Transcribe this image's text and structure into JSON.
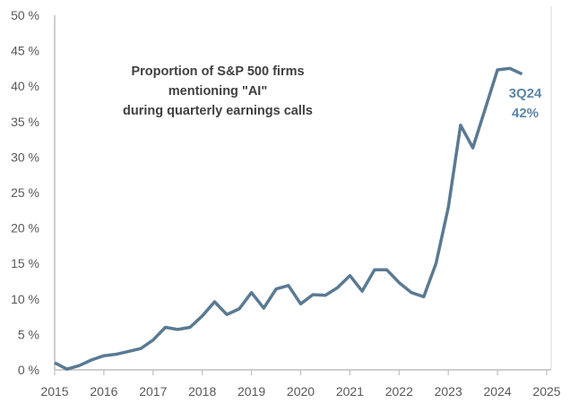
{
  "chart_data": {
    "type": "line",
    "title": [
      "Proportion of S&P 500 firms",
      "mentioning \"AI\"",
      "during quarterly earnings calls"
    ],
    "xlabel": "",
    "ylabel": "",
    "xlim": [
      2015,
      2025
    ],
    "ylim": [
      0,
      50
    ],
    "x_ticks": [
      2015,
      2016,
      2017,
      2018,
      2019,
      2020,
      2021,
      2022,
      2023,
      2024,
      2025
    ],
    "x_tick_labels": [
      "2015",
      "2016",
      "2017",
      "2018",
      "2019",
      "2020",
      "2021",
      "2022",
      "2023",
      "2024",
      "2025"
    ],
    "y_ticks": [
      0,
      5,
      10,
      15,
      20,
      25,
      30,
      35,
      40,
      45,
      50
    ],
    "y_tick_labels": [
      "0 %",
      "5 %",
      "10 %",
      "15 %",
      "20 %",
      "25 %",
      "30 %",
      "35 %",
      "40 %",
      "45 %",
      "50 %"
    ],
    "grid": false,
    "color": "#5a7a92",
    "annotation_color": "#5b86a8",
    "annotation": [
      "3Q24",
      "42%"
    ],
    "x": [
      2015.0,
      2015.25,
      2015.5,
      2015.75,
      2016.0,
      2016.25,
      2016.5,
      2016.75,
      2017.0,
      2017.25,
      2017.5,
      2017.75,
      2018.0,
      2018.25,
      2018.5,
      2018.75,
      2019.0,
      2019.25,
      2019.5,
      2019.75,
      2020.0,
      2020.25,
      2020.5,
      2020.75,
      2021.0,
      2021.25,
      2021.5,
      2021.75,
      2022.0,
      2022.25,
      2022.5,
      2022.75,
      2023.0,
      2023.25,
      2023.5,
      2023.75,
      2024.0,
      2024.25,
      2024.5
    ],
    "values": [
      1.0,
      0.1,
      0.6,
      1.4,
      2.0,
      2.2,
      2.6,
      3.0,
      4.2,
      6.0,
      5.7,
      6.0,
      7.6,
      9.6,
      7.8,
      8.6,
      10.9,
      8.7,
      11.4,
      11.9,
      9.3,
      10.6,
      10.5,
      11.6,
      13.3,
      11.1,
      14.1,
      14.1,
      12.3,
      10.9,
      10.3,
      15.0,
      22.9,
      34.5,
      31.3,
      36.8,
      42.3,
      42.5,
      41.7
    ]
  }
}
